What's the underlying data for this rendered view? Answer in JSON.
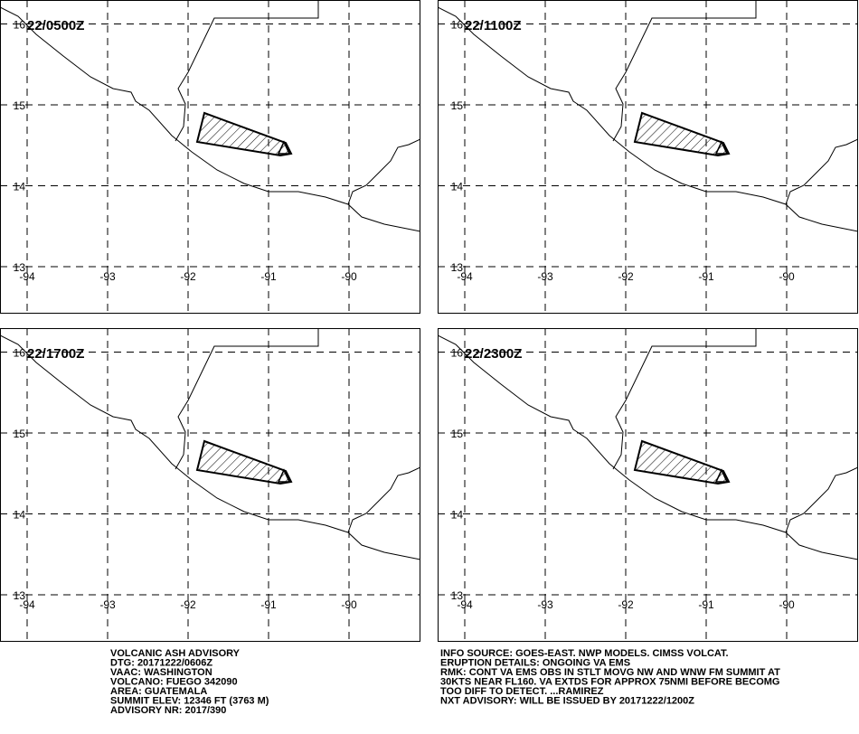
{
  "map": {
    "lat_ticks": [
      16,
      15,
      14,
      13
    ],
    "lon_ticks": [
      -94,
      -93,
      -92,
      -91,
      -90
    ]
  },
  "panels": [
    {
      "time": "22/0500Z"
    },
    {
      "time": "22/1100Z"
    },
    {
      "time": "22/1700Z"
    },
    {
      "time": "22/2300Z"
    }
  ],
  "advisory": {
    "left": [
      "VOLCANIC ASH ADVISORY",
      "DTG: 20171222/0606Z",
      "VAAC: WASHINGTON",
      "VOLCANO: FUEGO 342090",
      "AREA: GUATEMALA",
      "SUMMIT ELEV: 12346 FT (3763 M)",
      "ADVISORY NR: 2017/390"
    ],
    "right": [
      "INFO SOURCE: GOES-EAST. NWP MODELS. CIMSS VOLCAT.",
      "ERUPTION DETAILS: ONGOING VA EMS",
      "RMK: CONT VA EMS OBS IN STLT MOVG NW AND WNW FM SUMMIT AT",
      "30KTS NEAR FL160. VA EXTDS FOR APPROX 75NMI BEFORE BECOMG",
      "TOO DIFF TO DETECT. ...RAMIREZ",
      "NXT ADVISORY: WILL BE ISSUED BY 20171222/1200Z"
    ]
  }
}
